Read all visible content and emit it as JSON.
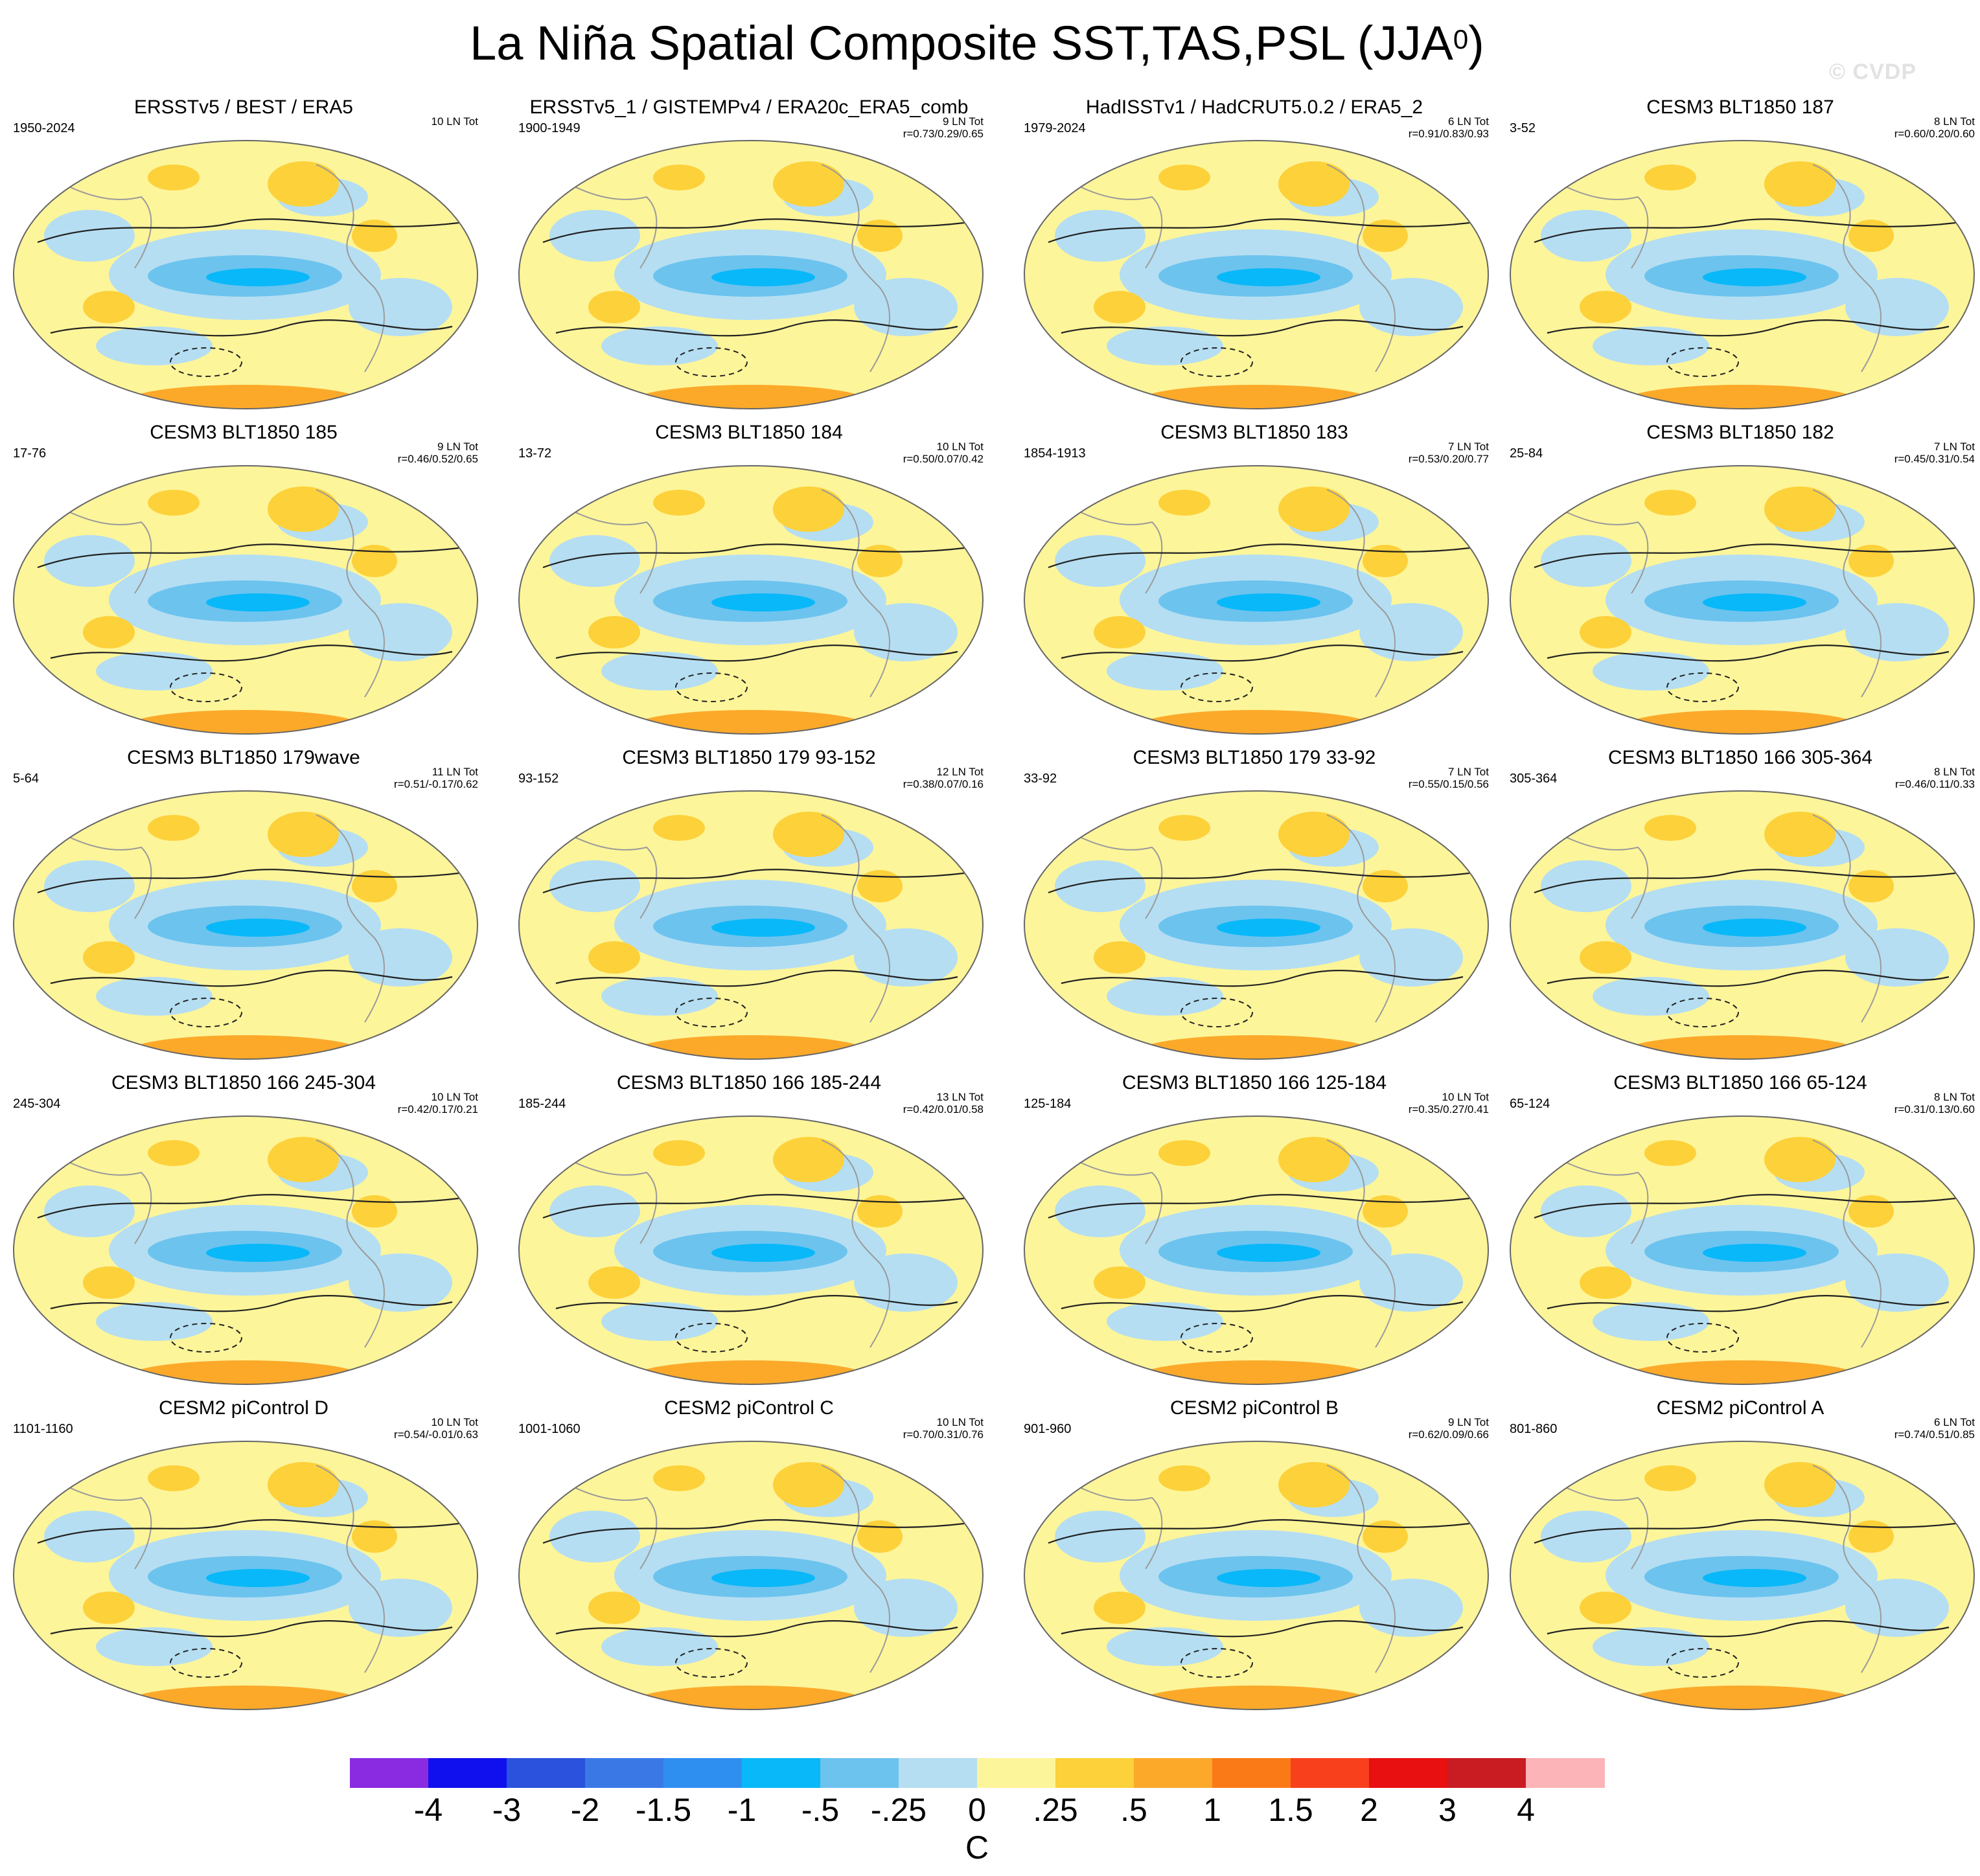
{
  "title": {
    "text": "La Niña Spatial Composite SST,TAS,PSL (JJA",
    "superscript": "0",
    "close": ")"
  },
  "watermark": "© CVDP",
  "units": "C",
  "colorbar": {
    "labels": [
      "-4",
      "-3",
      "-2",
      "-1.5",
      "-1",
      "-.5",
      "-.25",
      "0",
      ".25",
      ".5",
      "1",
      "1.5",
      "2",
      "3",
      "4"
    ],
    "colors": [
      "#8a2be2",
      "#1010ee",
      "#2a52dc",
      "#3a78e6",
      "#2f8ff0",
      "#09b8f8",
      "#6cc3ee",
      "#b5def2",
      "#fdf59a",
      "#fdd13a",
      "#fca92a",
      "#fb7a18",
      "#f8401d",
      "#e81010",
      "#c81c22",
      "#fcb4b8"
    ]
  },
  "panels": [
    {
      "title": "ERSSTv5 / BEST / ERA5",
      "period": "1950-2024",
      "count": "10 LN Tot",
      "r": ""
    },
    {
      "title": "ERSSTv5_1 / GISTEMPv4 / ERA20c_ERA5_comb",
      "period": "1900-1949",
      "count": "9 LN Tot",
      "r": "r=0.73/0.29/0.65"
    },
    {
      "title": "HadISSTv1 / HadCRUT5.0.2 / ERA5_2",
      "period": "1979-2024",
      "count": "6 LN Tot",
      "r": "r=0.91/0.83/0.93"
    },
    {
      "title": "CESM3 BLT1850 187",
      "period": "3-52",
      "count": "8 LN Tot",
      "r": "r=0.60/0.20/0.60"
    },
    {
      "title": "CESM3 BLT1850 185",
      "period": "17-76",
      "count": "9 LN Tot",
      "r": "r=0.46/0.52/0.65"
    },
    {
      "title": "CESM3 BLT1850 184",
      "period": "13-72",
      "count": "10 LN Tot",
      "r": "r=0.50/0.07/0.42"
    },
    {
      "title": "CESM3 BLT1850 183",
      "period": "1854-1913",
      "count": "7 LN Tot",
      "r": "r=0.53/0.20/0.77"
    },
    {
      "title": "CESM3 BLT1850 182",
      "period": "25-84",
      "count": "7 LN Tot",
      "r": "r=0.45/0.31/0.54"
    },
    {
      "title": "CESM3 BLT1850 179wave",
      "period": "5-64",
      "count": "11 LN Tot",
      "r": "r=0.51/-0.17/0.62"
    },
    {
      "title": "CESM3 BLT1850 179 93-152",
      "period": "93-152",
      "count": "12 LN Tot",
      "r": "r=0.38/0.07/0.16"
    },
    {
      "title": "CESM3 BLT1850 179 33-92",
      "period": "33-92",
      "count": "7 LN Tot",
      "r": "r=0.55/0.15/0.56"
    },
    {
      "title": "CESM3 BLT1850 166 305-364",
      "period": "305-364",
      "count": "8 LN Tot",
      "r": "r=0.46/0.11/0.33"
    },
    {
      "title": "CESM3 BLT1850 166 245-304",
      "period": "245-304",
      "count": "10 LN Tot",
      "r": "r=0.42/0.17/0.21"
    },
    {
      "title": "CESM3 BLT1850 166 185-244",
      "period": "185-244",
      "count": "13 LN Tot",
      "r": "r=0.42/0.01/0.58"
    },
    {
      "title": "CESM3 BLT1850 166 125-184",
      "period": "125-184",
      "count": "10 LN Tot",
      "r": "r=0.35/0.27/0.41"
    },
    {
      "title": "CESM3 BLT1850 166 65-124",
      "period": "65-124",
      "count": "8 LN Tot",
      "r": "r=0.31/0.13/0.60"
    },
    {
      "title": "CESM2 piControl D",
      "period": "1101-1160",
      "count": "10 LN Tot",
      "r": "r=0.54/-0.01/0.63"
    },
    {
      "title": "CESM2 piControl C",
      "period": "1001-1060",
      "count": "10 LN Tot",
      "r": "r=0.70/0.31/0.76"
    },
    {
      "title": "CESM2 piControl B",
      "period": "901-960",
      "count": "9 LN Tot",
      "r": "r=0.62/0.09/0.66"
    },
    {
      "title": "CESM2 piControl A",
      "period": "801-860",
      "count": "6 LN Tot",
      "r": "r=0.74/0.51/0.85"
    }
  ]
}
